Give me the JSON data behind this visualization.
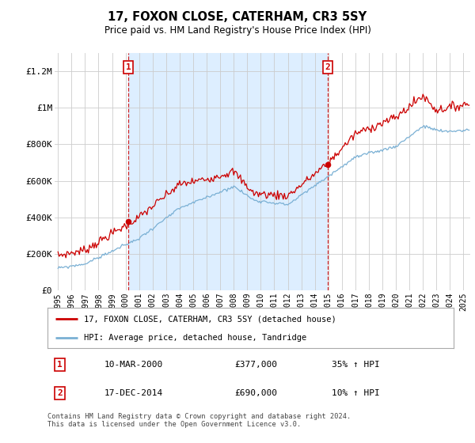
{
  "title": "17, FOXON CLOSE, CATERHAM, CR3 5SY",
  "subtitle": "Price paid vs. HM Land Registry's House Price Index (HPI)",
  "legend_line1": "17, FOXON CLOSE, CATERHAM, CR3 5SY (detached house)",
  "legend_line2": "HPI: Average price, detached house, Tandridge",
  "annotation1_date": "10-MAR-2000",
  "annotation1_price": "£377,000",
  "annotation1_hpi": "35% ↑ HPI",
  "annotation1_year": 2000.19,
  "annotation1_value": 377000,
  "annotation2_date": "17-DEC-2014",
  "annotation2_price": "£690,000",
  "annotation2_hpi": "10% ↑ HPI",
  "annotation2_year": 2014.96,
  "annotation2_value": 690000,
  "sale_color": "#cc0000",
  "hpi_color": "#7ab0d4",
  "shade_color": "#ddeeff",
  "annotation_color": "#cc0000",
  "dashed_line_color": "#cc0000",
  "ylim": [
    0,
    1300000
  ],
  "yticks": [
    0,
    200000,
    400000,
    600000,
    800000,
    1000000,
    1200000
  ],
  "ytick_labels": [
    "£0",
    "£200K",
    "£400K",
    "£600K",
    "£800K",
    "£1M",
    "£1.2M"
  ],
  "xlim_start": 1994.75,
  "xlim_end": 2025.5,
  "footer": "Contains HM Land Registry data © Crown copyright and database right 2024.\nThis data is licensed under the Open Government Licence v3.0.",
  "background_color": "#ffffff",
  "plot_bg_color": "#ffffff",
  "grid_color": "#cccccc"
}
